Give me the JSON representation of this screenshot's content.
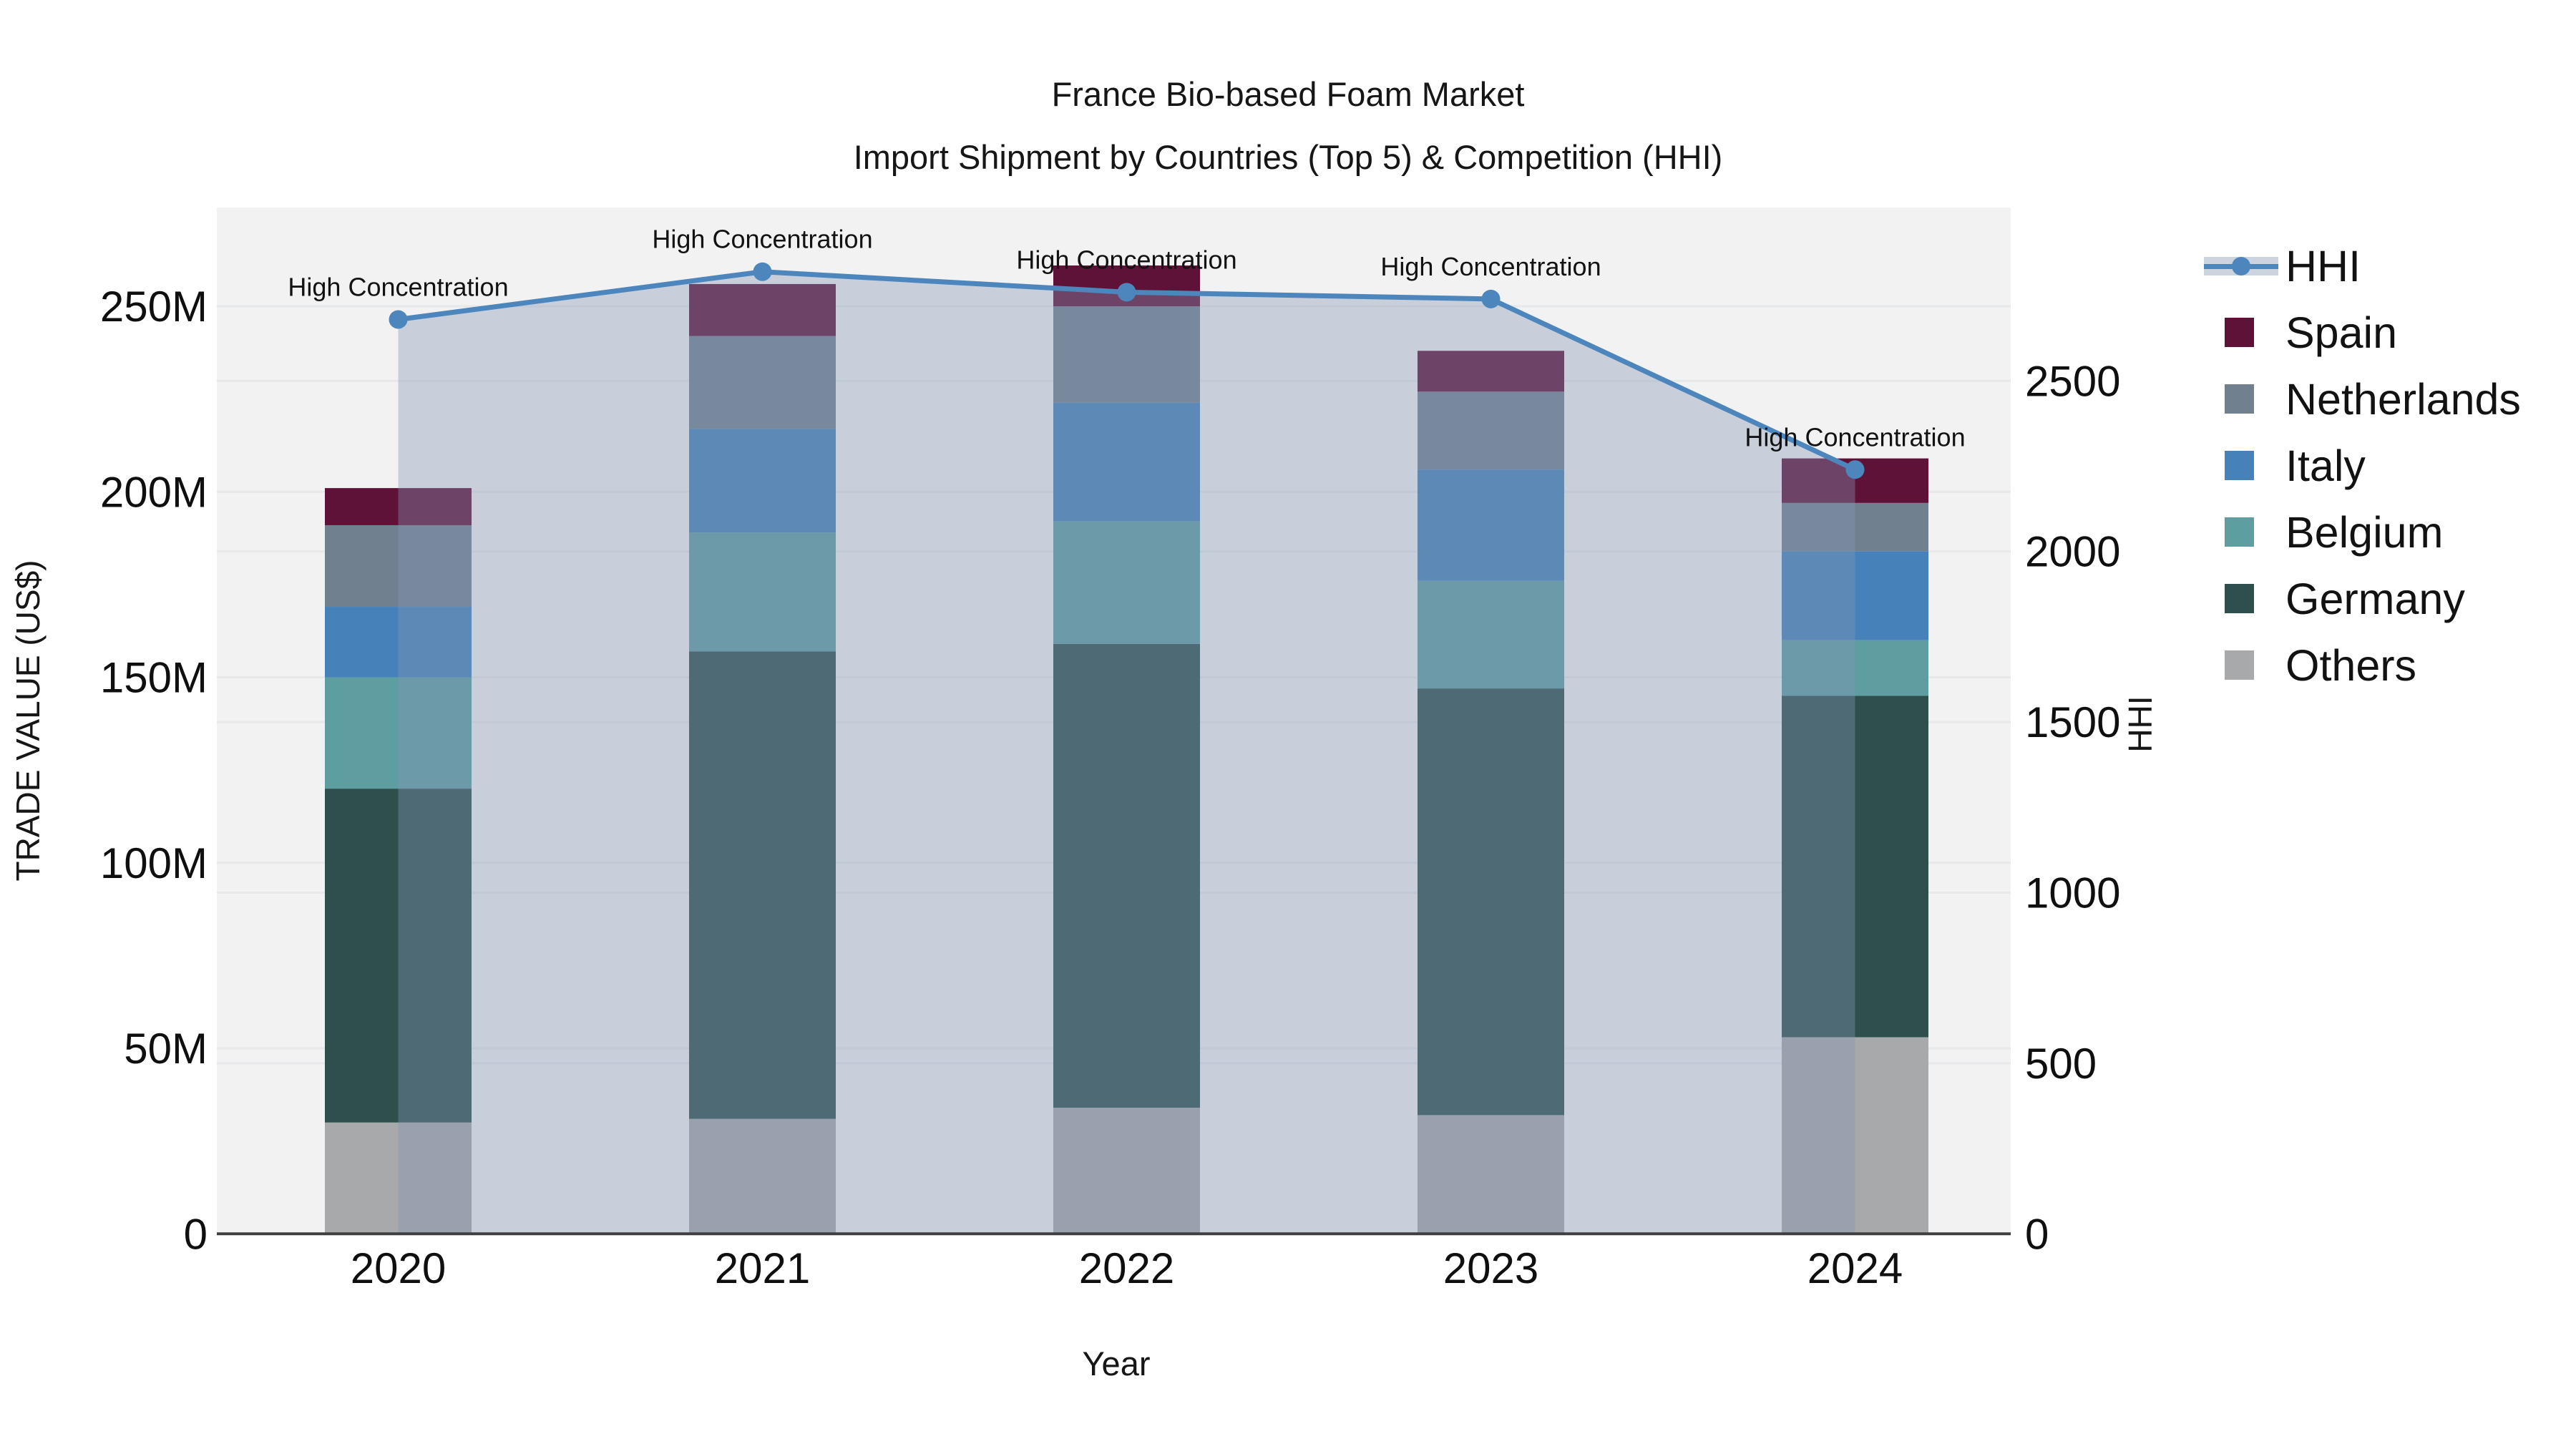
{
  "title": {
    "line1": "France Bio-based Foam Market",
    "line2": "Import Shipment by Countries (Top 5) & Competition (HHI)"
  },
  "chart_data": {
    "type": "bar",
    "subtype": "stacked-bar-with-line",
    "categories": [
      "2020",
      "2021",
      "2022",
      "2023",
      "2024"
    ],
    "bar_unit": "M US$",
    "series": [
      {
        "name": "Others",
        "color": "#A7A9AA",
        "values": [
          30,
          31,
          34,
          32,
          53
        ]
      },
      {
        "name": "Germany",
        "color": "#2E4F4C",
        "values": [
          90,
          126,
          125,
          115,
          92
        ]
      },
      {
        "name": "Belgium",
        "color": "#5E9DA0",
        "values": [
          30,
          32,
          33,
          29,
          15
        ]
      },
      {
        "name": "Italy",
        "color": "#4681B9",
        "values": [
          19,
          28,
          32,
          30,
          24
        ]
      },
      {
        "name": "Netherlands",
        "color": "#71808F",
        "values": [
          22,
          25,
          26,
          21,
          13
        ]
      },
      {
        "name": "Spain",
        "color": "#5F1237",
        "values": [
          10,
          14,
          11,
          11,
          12
        ]
      }
    ],
    "bar_totals": [
      201,
      256,
      261,
      238,
      209
    ],
    "line_series": {
      "name": "HHI",
      "color": "#4D86BC",
      "area_fill": "rgba(131,151,182,0.38)",
      "values": [
        2680,
        2820,
        2760,
        2740,
        2240
      ]
    },
    "annotation_text": "High Concentration",
    "xlabel": "Year",
    "ylabel_left": "TRADE VALUE (US$)",
    "ylabel_right": "HHI",
    "y_left_ticks": [
      {
        "v": 0,
        "label": "0"
      },
      {
        "v": 50,
        "label": "50M"
      },
      {
        "v": 100,
        "label": "100M"
      },
      {
        "v": 150,
        "label": "150M"
      },
      {
        "v": 200,
        "label": "200M"
      },
      {
        "v": 250,
        "label": "250M"
      }
    ],
    "y_right_ticks": [
      {
        "v": 0,
        "label": "0"
      },
      {
        "v": 500,
        "label": "500"
      },
      {
        "v": 1000,
        "label": "1000"
      },
      {
        "v": 1500,
        "label": "1500"
      },
      {
        "v": 2000,
        "label": "2000"
      },
      {
        "v": 2500,
        "label": "2500"
      }
    ],
    "ylim_left_m": [
      0,
      276.6
    ],
    "ylim_right": [
      0,
      3008
    ],
    "grid": true,
    "legend_position": "right",
    "plot_bg": "#F2F2F3",
    "grid_color": "#E7E8EA",
    "axisline_color": "#3F3F3F"
  },
  "legend": {
    "items": [
      {
        "label": "HHI",
        "type": "line",
        "swatch": "#4D86BC"
      },
      {
        "label": "Spain",
        "type": "box",
        "swatch": "#5F1237"
      },
      {
        "label": "Netherlands",
        "type": "box",
        "swatch": "#71808F"
      },
      {
        "label": "Italy",
        "type": "box",
        "swatch": "#4681B9"
      },
      {
        "label": "Belgium",
        "type": "box",
        "swatch": "#5E9DA0"
      },
      {
        "label": "Germany",
        "type": "box",
        "swatch": "#2E4F4C"
      },
      {
        "label": "Others",
        "type": "box",
        "swatch": "#A7A9AA"
      }
    ]
  }
}
